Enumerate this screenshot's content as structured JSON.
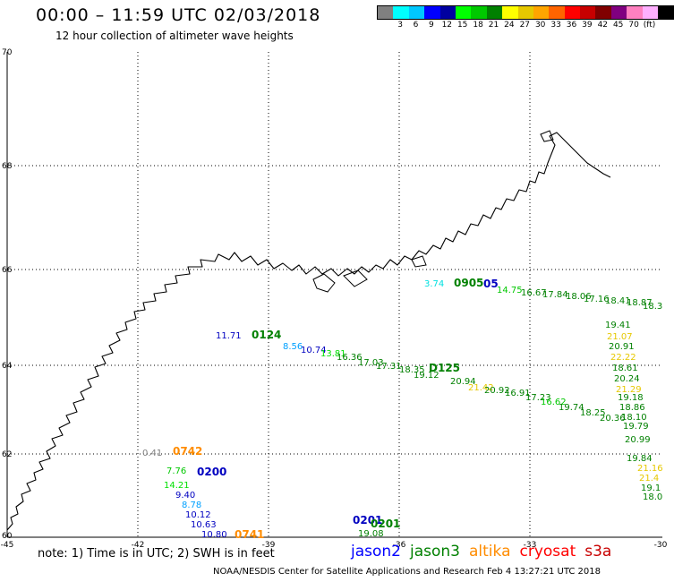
{
  "header": {
    "title": "00:00 – 11:59 UTC 02/03/2018",
    "subtitle": "12 hour collection of altimeter wave heights"
  },
  "colorbar": {
    "colors": [
      "#808080",
      "#00ffff",
      "#00c8ff",
      "#0000ff",
      "#0000a0",
      "#00ff00",
      "#00c800",
      "#008000",
      "#ffff00",
      "#e6c800",
      "#ffa500",
      "#ff6400",
      "#ff0000",
      "#c80000",
      "#800000",
      "#800080",
      "#ff80c0",
      "#ffb0ff",
      "#000000"
    ],
    "labels": [
      "3",
      "6",
      "9",
      "12",
      "15",
      "18",
      "21",
      "24",
      "27",
      "30",
      "33",
      "36",
      "39",
      "42",
      "45",
      "70",
      "(ft)"
    ]
  },
  "axes": {
    "lon_ticks": [
      "-45",
      "-42",
      "-39",
      "-36",
      "-33",
      "-30"
    ],
    "lat_ticks": [
      "70",
      "68",
      "66",
      "64",
      "62",
      "60"
    ]
  },
  "observations": [
    {
      "text": "3.74",
      "color": "#00e0e0"
    },
    {
      "text": "0905",
      "color": "#008000",
      "pass": true
    },
    {
      "text": "05",
      "color": "#0000c0",
      "pass": true
    },
    {
      "text": "14.75",
      "color": "#00c800"
    },
    {
      "text": "16.67",
      "color": "#008000"
    },
    {
      "text": "17.84",
      "color": "#008000"
    },
    {
      "text": "18.06",
      "color": "#008000"
    },
    {
      "text": "17.16",
      "color": "#008000"
    },
    {
      "text": "18.41",
      "color": "#008000"
    },
    {
      "text": "18.87",
      "color": "#008000"
    },
    {
      "text": "18.3",
      "color": "#008000"
    },
    {
      "text": "19.41",
      "color": "#008000"
    },
    {
      "text": "21.07",
      "color": "#e6c800"
    },
    {
      "text": "20.91",
      "color": "#008000"
    },
    {
      "text": "22.22",
      "color": "#e6c800"
    },
    {
      "text": "18.61",
      "color": "#008000"
    },
    {
      "text": "20.24",
      "color": "#008000"
    },
    {
      "text": "21.29",
      "color": "#e6c800"
    },
    {
      "text": "19.18",
      "color": "#008000"
    },
    {
      "text": "18.86",
      "color": "#008000"
    },
    {
      "text": "18.10",
      "color": "#008000"
    },
    {
      "text": "19.79",
      "color": "#008000"
    },
    {
      "text": "20.99",
      "color": "#008000"
    },
    {
      "text": "19.84",
      "color": "#008000"
    },
    {
      "text": "21.16",
      "color": "#e6c800"
    },
    {
      "text": "21.4",
      "color": "#e6c800"
    },
    {
      "text": "19.1",
      "color": "#008000"
    },
    {
      "text": "18.0",
      "color": "#008000"
    },
    {
      "text": "11.71",
      "color": "#0000c0"
    },
    {
      "text": "0124",
      "color": "#008000",
      "pass": true
    },
    {
      "text": "8.56",
      "color": "#00a0ff"
    },
    {
      "text": "10.74",
      "color": "#0000c0"
    },
    {
      "text": "13.81",
      "color": "#00e000"
    },
    {
      "text": "16.36",
      "color": "#008000"
    },
    {
      "text": "17.03",
      "color": "#008000"
    },
    {
      "text": "17.31",
      "color": "#008000"
    },
    {
      "text": "18.35",
      "color": "#008000"
    },
    {
      "text": "D125",
      "color": "#008000",
      "pass": true
    },
    {
      "text": "19.12",
      "color": "#008000"
    },
    {
      "text": "20.94",
      "color": "#008000"
    },
    {
      "text": "21.42",
      "color": "#e6c800"
    },
    {
      "text": "20.92",
      "color": "#008000"
    },
    {
      "text": "16.91",
      "color": "#008000"
    },
    {
      "text": "17.23",
      "color": "#008000"
    },
    {
      "text": "16.62",
      "color": "#00c800"
    },
    {
      "text": "19.74",
      "color": "#008000"
    },
    {
      "text": "18.25",
      "color": "#008000"
    },
    {
      "text": "20.36",
      "color": "#008000"
    },
    {
      "text": "0.41",
      "color": "#808080"
    },
    {
      "text": "0742",
      "color": "#ff8c00",
      "pass": true
    },
    {
      "text": "7.76",
      "color": "#00c800"
    },
    {
      "text": "0200",
      "color": "#0000c0",
      "pass": true
    },
    {
      "text": "14.21",
      "color": "#00e000"
    },
    {
      "text": "9.40",
      "color": "#0000c0"
    },
    {
      "text": "8.78",
      "color": "#00a0ff"
    },
    {
      "text": "10.12",
      "color": "#0000c0"
    },
    {
      "text": "10.63",
      "color": "#0000c0"
    },
    {
      "text": "10.80",
      "color": "#0000c0"
    },
    {
      "text": "0741",
      "color": "#ff8c00",
      "pass": true
    },
    {
      "text": "0201",
      "color": "#0000c0",
      "pass": true
    },
    {
      "text": "0201",
      "color": "#008000",
      "pass": true
    },
    {
      "text": "19.08",
      "color": "#008000"
    }
  ],
  "footer": {
    "note": "note: 1) Time is in UTC; 2) SWH is in feet",
    "legend": [
      {
        "name": "jason2",
        "color": "#0000ff"
      },
      {
        "name": "jason3",
        "color": "#008000"
      },
      {
        "name": "altika",
        "color": "#ff8c00"
      },
      {
        "name": "cryosat",
        "color": "#ff0000"
      },
      {
        "name": "s3a",
        "color": "#c80000"
      }
    ],
    "credit": "NOAA/NESDIS Center for Satellite Applications and Research   Feb  4 13:27:21 UTC 2018"
  }
}
